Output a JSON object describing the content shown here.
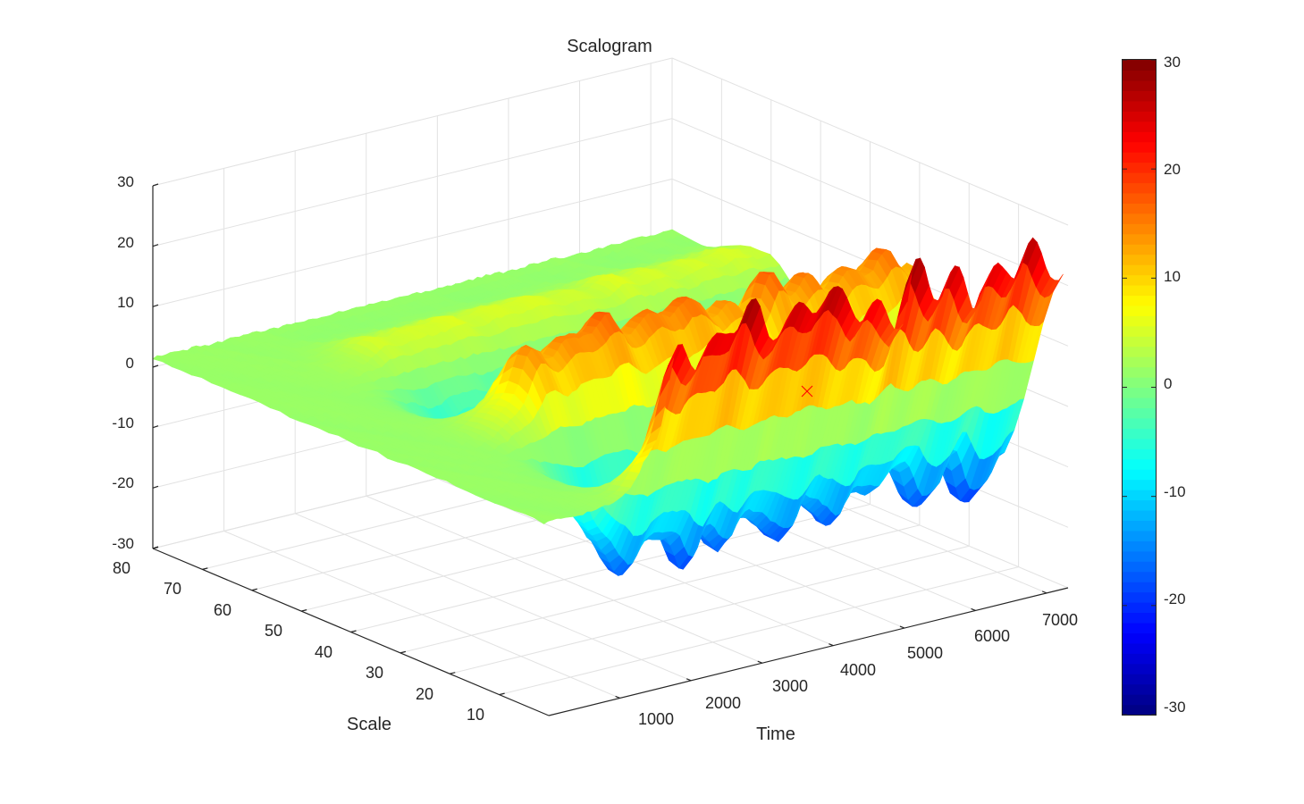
{
  "chart_data": {
    "type": "surface",
    "title": "Scalogram",
    "xlabel": "Time",
    "ylabel": "Scale",
    "zlabel": "",
    "xlim": [
      0,
      7300
    ],
    "ylim": [
      0,
      80
    ],
    "zlim": [
      -30,
      30
    ],
    "x_ticks": [
      "1000",
      "2000",
      "3000",
      "4000",
      "5000",
      "6000",
      "7000"
    ],
    "y_ticks": [
      "10",
      "20",
      "30",
      "40",
      "50",
      "60",
      "70",
      "80"
    ],
    "z_ticks": [
      "-30",
      "-20",
      "-10",
      "0",
      "10",
      "20",
      "30"
    ],
    "colorbar": {
      "colormap": "jet",
      "limits": [
        -30,
        30
      ],
      "ticks": [
        "-30",
        "-20",
        "-10",
        "0",
        "10",
        "20",
        "30"
      ]
    },
    "grid": true,
    "marker": {
      "symbol": "x",
      "color": "#ff0000"
    },
    "surface_notes": "Flat near zero (green) for time below about 1500; after that the ridge oscillates between roughly +28 and -28 with amplitude growing toward small scales."
  }
}
